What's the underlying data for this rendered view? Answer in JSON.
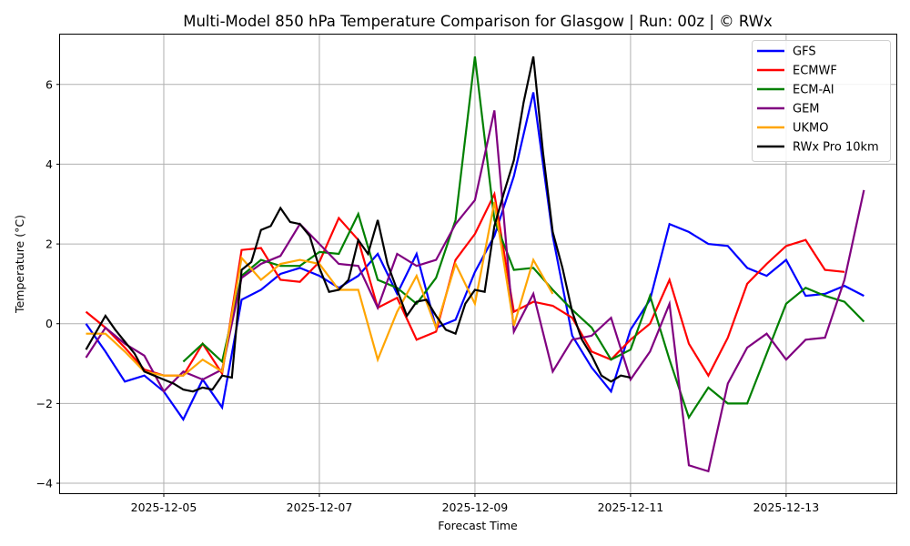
{
  "chart_data": {
    "type": "line",
    "title": "Multi-Model 850 hPa Temperature Comparison for Glasgow | Run: 00z | © RWx",
    "xlabel": "Forecast Time",
    "ylabel": "Temperature (°C)",
    "x_start": "2025-12-04T00:00",
    "x_unit": "hours since 2025-12-04 00z",
    "xlim_hours": [
      -8,
      250
    ],
    "ylim": [
      -4.25,
      7.25
    ],
    "grid": true,
    "legend_position": "top-right",
    "xticks": [
      {
        "hours": 24,
        "label": "2025-12-05"
      },
      {
        "hours": 72,
        "label": "2025-12-07"
      },
      {
        "hours": 120,
        "label": "2025-12-09"
      },
      {
        "hours": 168,
        "label": "2025-12-11"
      },
      {
        "hours": 216,
        "label": "2025-12-13"
      }
    ],
    "yticks": [
      -4,
      -2,
      0,
      2,
      4,
      6
    ],
    "ytick_labels": [
      "−4",
      "−2",
      "0",
      "2",
      "4",
      "6"
    ],
    "series": [
      {
        "name": "GFS",
        "color": "#0000ff",
        "points": [
          [
            0,
            0.0
          ],
          [
            6,
            -0.7
          ],
          [
            12,
            -1.45
          ],
          [
            18,
            -1.3
          ],
          [
            24,
            -1.7
          ],
          [
            30,
            -2.4
          ],
          [
            36,
            -1.4
          ],
          [
            42,
            -2.1
          ],
          [
            48,
            0.6
          ],
          [
            54,
            0.85
          ],
          [
            60,
            1.25
          ],
          [
            66,
            1.4
          ],
          [
            72,
            1.2
          ],
          [
            78,
            0.9
          ],
          [
            84,
            1.2
          ],
          [
            90,
            1.75
          ],
          [
            96,
            0.75
          ],
          [
            102,
            1.75
          ],
          [
            108,
            -0.1
          ],
          [
            114,
            0.1
          ],
          [
            120,
            1.3
          ],
          [
            126,
            2.2
          ],
          [
            132,
            3.7
          ],
          [
            138,
            5.8
          ],
          [
            144,
            2.2
          ],
          [
            150,
            -0.3
          ],
          [
            156,
            -1.1
          ],
          [
            162,
            -1.7
          ],
          [
            168,
            -0.15
          ],
          [
            174,
            0.6
          ],
          [
            180,
            2.5
          ],
          [
            186,
            2.3
          ],
          [
            192,
            2.0
          ],
          [
            198,
            1.95
          ],
          [
            204,
            1.4
          ],
          [
            210,
            1.2
          ],
          [
            216,
            1.6
          ],
          [
            222,
            0.7
          ],
          [
            228,
            0.75
          ],
          [
            234,
            0.95
          ],
          [
            240,
            0.7
          ]
        ]
      },
      {
        "name": "ECMWF",
        "color": "#ff0000",
        "points": [
          [
            0,
            0.3
          ],
          [
            6,
            -0.1
          ],
          [
            12,
            -0.6
          ],
          [
            18,
            -1.15
          ],
          [
            24,
            -1.3
          ],
          [
            30,
            -1.3
          ],
          [
            36,
            -0.5
          ],
          [
            42,
            -1.25
          ],
          [
            48,
            1.85
          ],
          [
            54,
            1.9
          ],
          [
            60,
            1.1
          ],
          [
            66,
            1.05
          ],
          [
            72,
            1.55
          ],
          [
            78,
            2.65
          ],
          [
            84,
            2.1
          ],
          [
            90,
            0.4
          ],
          [
            96,
            0.65
          ],
          [
            102,
            -0.4
          ],
          [
            108,
            -0.2
          ],
          [
            114,
            1.6
          ],
          [
            120,
            2.25
          ],
          [
            126,
            3.25
          ],
          [
            132,
            0.3
          ],
          [
            138,
            0.55
          ],
          [
            144,
            0.45
          ],
          [
            150,
            0.15
          ],
          [
            156,
            -0.7
          ],
          [
            162,
            -0.9
          ],
          [
            168,
            -0.4
          ],
          [
            174,
            0.0
          ],
          [
            180,
            1.1
          ],
          [
            186,
            -0.5
          ],
          [
            192,
            -1.3
          ],
          [
            198,
            -0.35
          ],
          [
            204,
            1.0
          ],
          [
            210,
            1.5
          ],
          [
            216,
            1.95
          ],
          [
            222,
            2.1
          ],
          [
            228,
            1.35
          ],
          [
            234,
            1.3
          ]
        ]
      },
      {
        "name": "ECM-AI",
        "color": "#008000",
        "points": [
          [
            30,
            -0.95
          ],
          [
            36,
            -0.5
          ],
          [
            42,
            -0.95
          ],
          [
            48,
            1.2
          ],
          [
            54,
            1.6
          ],
          [
            60,
            1.45
          ],
          [
            66,
            1.45
          ],
          [
            72,
            1.8
          ],
          [
            78,
            1.75
          ],
          [
            84,
            2.75
          ],
          [
            90,
            1.1
          ],
          [
            96,
            0.9
          ],
          [
            102,
            0.5
          ],
          [
            108,
            1.15
          ],
          [
            114,
            2.6
          ],
          [
            120,
            6.7
          ],
          [
            126,
            2.6
          ],
          [
            132,
            1.35
          ],
          [
            138,
            1.4
          ],
          [
            144,
            0.85
          ],
          [
            150,
            0.35
          ],
          [
            156,
            -0.1
          ],
          [
            162,
            -0.9
          ],
          [
            168,
            -0.65
          ],
          [
            174,
            0.7
          ],
          [
            180,
            -0.9
          ],
          [
            186,
            -2.35
          ],
          [
            192,
            -1.6
          ],
          [
            198,
            -2.0
          ],
          [
            204,
            -2.0
          ],
          [
            210,
            -0.75
          ],
          [
            216,
            0.5
          ],
          [
            222,
            0.9
          ],
          [
            228,
            0.7
          ],
          [
            234,
            0.55
          ],
          [
            240,
            0.05
          ]
        ]
      },
      {
        "name": "GEM",
        "color": "#800080",
        "points": [
          [
            0,
            -0.85
          ],
          [
            6,
            -0.1
          ],
          [
            12,
            -0.5
          ],
          [
            18,
            -0.8
          ],
          [
            24,
            -1.7
          ],
          [
            30,
            -1.2
          ],
          [
            36,
            -1.4
          ],
          [
            42,
            -1.15
          ],
          [
            48,
            1.15
          ],
          [
            54,
            1.5
          ],
          [
            60,
            1.7
          ],
          [
            66,
            2.5
          ],
          [
            72,
            2.0
          ],
          [
            78,
            1.5
          ],
          [
            84,
            1.45
          ],
          [
            90,
            0.4
          ],
          [
            96,
            1.75
          ],
          [
            102,
            1.45
          ],
          [
            108,
            1.6
          ],
          [
            114,
            2.5
          ],
          [
            120,
            3.1
          ],
          [
            126,
            5.35
          ],
          [
            132,
            -0.2
          ],
          [
            138,
            0.75
          ],
          [
            144,
            -1.2
          ],
          [
            150,
            -0.4
          ],
          [
            156,
            -0.3
          ],
          [
            162,
            0.15
          ],
          [
            168,
            -1.4
          ],
          [
            174,
            -0.7
          ],
          [
            180,
            0.5
          ],
          [
            186,
            -3.55
          ],
          [
            192,
            -3.7
          ],
          [
            198,
            -1.5
          ],
          [
            204,
            -0.6
          ],
          [
            210,
            -0.25
          ],
          [
            216,
            -0.9
          ],
          [
            222,
            -0.4
          ],
          [
            228,
            -0.35
          ],
          [
            234,
            1.1
          ],
          [
            240,
            3.35
          ]
        ]
      },
      {
        "name": "UKMO",
        "color": "#ffa500",
        "points": [
          [
            0,
            -0.25
          ],
          [
            6,
            -0.25
          ],
          [
            12,
            -0.7
          ],
          [
            18,
            -1.2
          ],
          [
            24,
            -1.3
          ],
          [
            30,
            -1.3
          ],
          [
            36,
            -0.9
          ],
          [
            42,
            -1.2
          ],
          [
            48,
            1.65
          ],
          [
            54,
            1.1
          ],
          [
            60,
            1.5
          ],
          [
            66,
            1.6
          ],
          [
            72,
            1.5
          ],
          [
            78,
            0.85
          ],
          [
            84,
            0.85
          ],
          [
            90,
            -0.9
          ],
          [
            96,
            0.3
          ],
          [
            102,
            1.2
          ],
          [
            108,
            -0.1
          ],
          [
            114,
            1.5
          ],
          [
            120,
            0.5
          ],
          [
            126,
            3.05
          ],
          [
            132,
            -0.05
          ],
          [
            138,
            1.6
          ],
          [
            144,
            0.75
          ]
        ]
      },
      {
        "name": "RWx Pro 10km",
        "color": "#000000",
        "points": [
          [
            0,
            -0.65
          ],
          [
            6,
            0.2
          ],
          [
            9,
            -0.15
          ],
          [
            12,
            -0.45
          ],
          [
            15,
            -0.75
          ],
          [
            18,
            -1.2
          ],
          [
            21,
            -1.3
          ],
          [
            24,
            -1.4
          ],
          [
            27,
            -1.5
          ],
          [
            30,
            -1.65
          ],
          [
            33,
            -1.7
          ],
          [
            36,
            -1.6
          ],
          [
            39,
            -1.65
          ],
          [
            42,
            -1.3
          ],
          [
            45,
            -1.35
          ],
          [
            48,
            1.35
          ],
          [
            51,
            1.55
          ],
          [
            54,
            2.35
          ],
          [
            57,
            2.45
          ],
          [
            60,
            2.9
          ],
          [
            63,
            2.55
          ],
          [
            66,
            2.5
          ],
          [
            69,
            2.2
          ],
          [
            72,
            1.4
          ],
          [
            75,
            0.8
          ],
          [
            78,
            0.85
          ],
          [
            81,
            1.1
          ],
          [
            84,
            2.1
          ],
          [
            87,
            1.75
          ],
          [
            90,
            2.6
          ],
          [
            93,
            1.5
          ],
          [
            96,
            0.85
          ],
          [
            99,
            0.2
          ],
          [
            102,
            0.55
          ],
          [
            105,
            0.6
          ],
          [
            108,
            0.2
          ],
          [
            111,
            -0.15
          ],
          [
            114,
            -0.25
          ],
          [
            117,
            0.5
          ],
          [
            120,
            0.85
          ],
          [
            123,
            0.8
          ],
          [
            126,
            2.45
          ],
          [
            129,
            3.3
          ],
          [
            132,
            4.1
          ],
          [
            135,
            5.55
          ],
          [
            138,
            6.7
          ],
          [
            141,
            4.3
          ],
          [
            144,
            2.3
          ],
          [
            147,
            1.4
          ],
          [
            150,
            0.3
          ],
          [
            153,
            -0.4
          ],
          [
            156,
            -0.8
          ],
          [
            159,
            -1.3
          ],
          [
            162,
            -1.45
          ],
          [
            165,
            -1.3
          ],
          [
            168,
            -1.35
          ]
        ]
      }
    ]
  }
}
